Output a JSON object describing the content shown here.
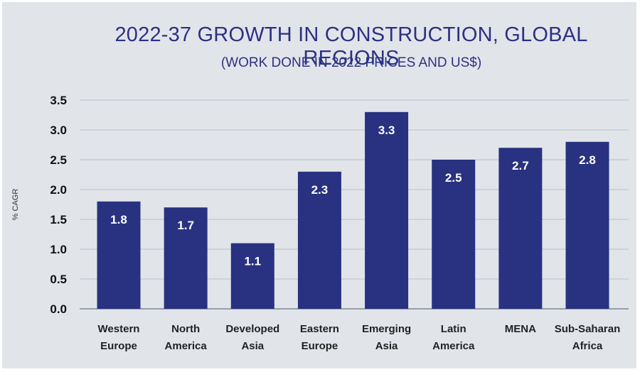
{
  "chart_data": {
    "type": "bar",
    "title": "2022-37 GROWTH IN CONSTRUCTION, GLOBAL REGIONS",
    "subtitle": "(WORK DONE IN 2022 PRICES AND US$)",
    "ylabel": "% CAGR",
    "xlabel": "",
    "ylim": [
      0,
      3.5
    ],
    "yticks": [
      "0.0",
      "0.5",
      "1.0",
      "1.5",
      "2.0",
      "2.5",
      "3.0",
      "3.5"
    ],
    "grid": true,
    "categories": [
      [
        "Western",
        "Europe"
      ],
      [
        "North",
        "America"
      ],
      [
        "Developed",
        "Asia"
      ],
      [
        "Eastern",
        "Europe"
      ],
      [
        "Emerging",
        "Asia"
      ],
      [
        "Latin",
        "America"
      ],
      [
        "MENA"
      ],
      [
        "Sub-Saharan",
        "Africa"
      ]
    ],
    "values": [
      1.8,
      1.7,
      1.1,
      2.3,
      3.3,
      2.5,
      2.7,
      2.8
    ],
    "data_labels": [
      "1.8",
      "1.7",
      "1.1",
      "2.3",
      "3.3",
      "2.5",
      "2.7",
      "2.8"
    ],
    "bar_color": "#283280",
    "grid_color": "#b9bfc8",
    "background_color": "#e1e5ea"
  }
}
